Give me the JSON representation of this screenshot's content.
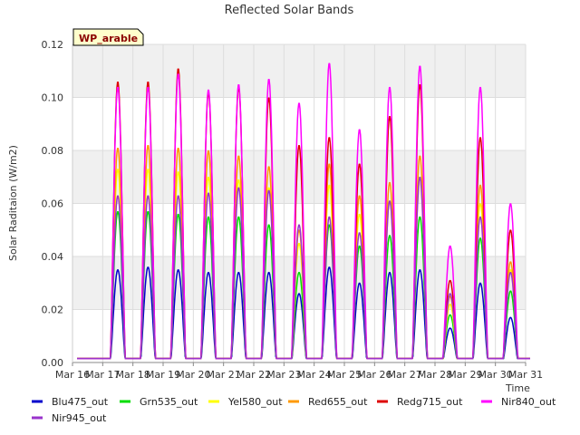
{
  "chart_data": {
    "type": "line",
    "title": "Reflected Solar Bands",
    "xlabel": "Time",
    "ylabel": "Solar Raditaion (W/m2)",
    "annotation": "WP_arable",
    "xlim": [
      "Mar 16",
      "Mar 31"
    ],
    "ylim": [
      0,
      0.12
    ],
    "yticks": [
      "0.00",
      "0.02",
      "0.04",
      "0.06",
      "0.08",
      "0.10",
      "0.12"
    ],
    "xticks": [
      "Mar 16",
      "Mar 17",
      "Mar 18",
      "Mar 19",
      "Mar 20",
      "Mar 21",
      "Mar 22",
      "Mar 23",
      "Mar 24",
      "Mar 25",
      "Mar 26",
      "Mar 27",
      "Mar 28",
      "Mar 29",
      "Mar 30",
      "Mar 31"
    ],
    "grid": true,
    "legend_position": "bottom",
    "days": [
      "Mar 17",
      "Mar 18",
      "Mar 19",
      "Mar 20",
      "Mar 21",
      "Mar 22",
      "Mar 23",
      "Mar 24",
      "Mar 25",
      "Mar 26",
      "Mar 27",
      "Mar 28",
      "Mar 29",
      "Mar 30"
    ],
    "series": [
      {
        "name": "Blu475_out",
        "color": "#0000cc",
        "daily_peak": [
          0.035,
          0.036,
          0.035,
          0.034,
          0.034,
          0.034,
          0.026,
          0.036,
          0.03,
          0.034,
          0.035,
          0.013,
          0.03,
          0.017
        ]
      },
      {
        "name": "Grn535_out",
        "color": "#00dd00",
        "daily_peak": [
          0.057,
          0.057,
          0.056,
          0.055,
          0.055,
          0.052,
          0.034,
          0.052,
          0.044,
          0.048,
          0.055,
          0.018,
          0.047,
          0.027
        ]
      },
      {
        "name": "Yel580_out",
        "color": "#ffff00",
        "daily_peak": [
          0.073,
          0.073,
          0.072,
          0.07,
          0.069,
          0.066,
          0.045,
          0.067,
          0.056,
          0.061,
          0.07,
          0.022,
          0.06,
          0.035
        ]
      },
      {
        "name": "Red655_out",
        "color": "#ff9900",
        "daily_peak": [
          0.081,
          0.082,
          0.081,
          0.08,
          0.078,
          0.074,
          0.05,
          0.075,
          0.063,
          0.068,
          0.078,
          0.025,
          0.067,
          0.038
        ]
      },
      {
        "name": "Redg715_out",
        "color": "#dd0000",
        "daily_peak": [
          0.106,
          0.106,
          0.111,
          0.102,
          0.104,
          0.1,
          0.082,
          0.085,
          0.075,
          0.093,
          0.105,
          0.031,
          0.085,
          0.05
        ]
      },
      {
        "name": "Nir840_out",
        "color": "#ff00ff",
        "daily_peak": [
          0.104,
          0.104,
          0.109,
          0.103,
          0.105,
          0.107,
          0.098,
          0.113,
          0.088,
          0.104,
          0.112,
          0.044,
          0.104,
          0.06
        ]
      },
      {
        "name": "Nir945_out",
        "color": "#9933cc",
        "daily_peak": [
          0.063,
          0.063,
          0.063,
          0.064,
          0.066,
          0.065,
          0.052,
          0.055,
          0.049,
          0.061,
          0.07,
          0.026,
          0.055,
          0.034
        ]
      }
    ]
  }
}
